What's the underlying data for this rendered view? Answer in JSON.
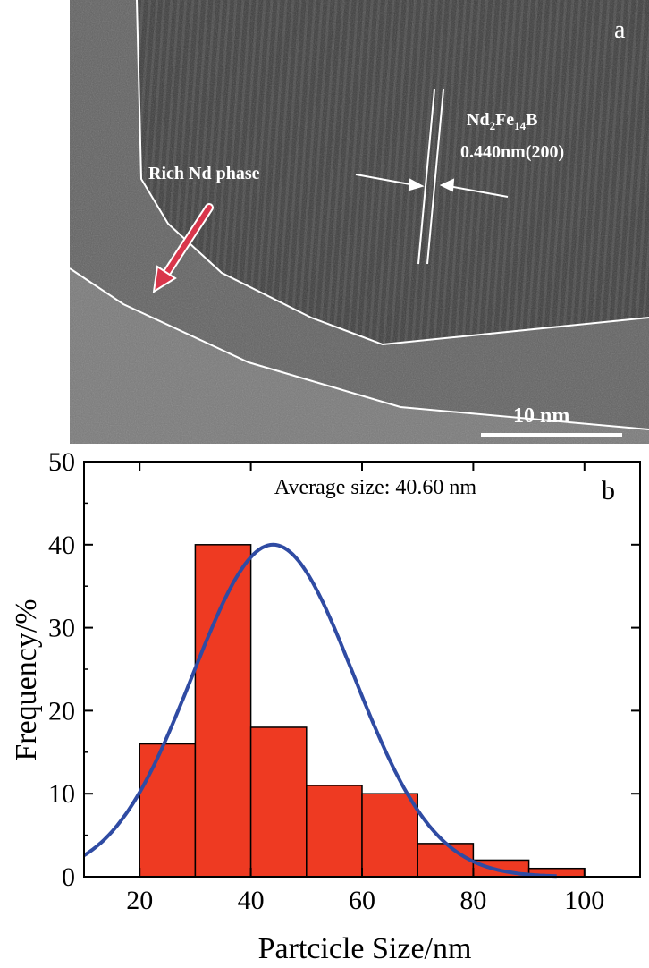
{
  "panel_a": {
    "label": "a",
    "phase_label": "Rich Nd phase",
    "lattice_formula": {
      "nd": "Nd",
      "nd_sub": "2",
      "fe": "Fe",
      "fe_sub": "14",
      "b": "B"
    },
    "lattice_spacing": "0.440nm(200)",
    "scale_bar": "10 nm",
    "colors": {
      "background": "#6b6b6b",
      "crystal": "#3a3a3a",
      "boundary": "#ffffff",
      "arrow": "#d9364b"
    }
  },
  "chart_data": {
    "type": "bar",
    "panel_label": "b",
    "annotation": "Average size: 40.60 nm",
    "xlabel": "Partcicle Size/nm",
    "ylabel": "Frequency/%",
    "xlim": [
      10,
      110
    ],
    "ylim": [
      0,
      50
    ],
    "xticks": [
      20,
      40,
      60,
      80,
      100
    ],
    "yticks": [
      0,
      10,
      20,
      30,
      40,
      50
    ],
    "bins": [
      {
        "x0": 20,
        "x1": 30,
        "value": 16
      },
      {
        "x0": 30,
        "x1": 40,
        "value": 40
      },
      {
        "x0": 40,
        "x1": 50,
        "value": 18
      },
      {
        "x0": 50,
        "x1": 60,
        "value": 11
      },
      {
        "x0": 60,
        "x1": 70,
        "value": 10
      },
      {
        "x0": 70,
        "x1": 80,
        "value": 4
      },
      {
        "x0": 80,
        "x1": 90,
        "value": 2
      },
      {
        "x0": 90,
        "x1": 100,
        "value": 1
      }
    ],
    "fit": {
      "type": "gaussian",
      "mean": 44,
      "sigma": 14.5,
      "peak": 40,
      "x_start": 10,
      "x_end": 95
    },
    "colors": {
      "bar": "#ee3a22",
      "bar_edge": "#000000",
      "fit": "#2f4ba3"
    }
  }
}
